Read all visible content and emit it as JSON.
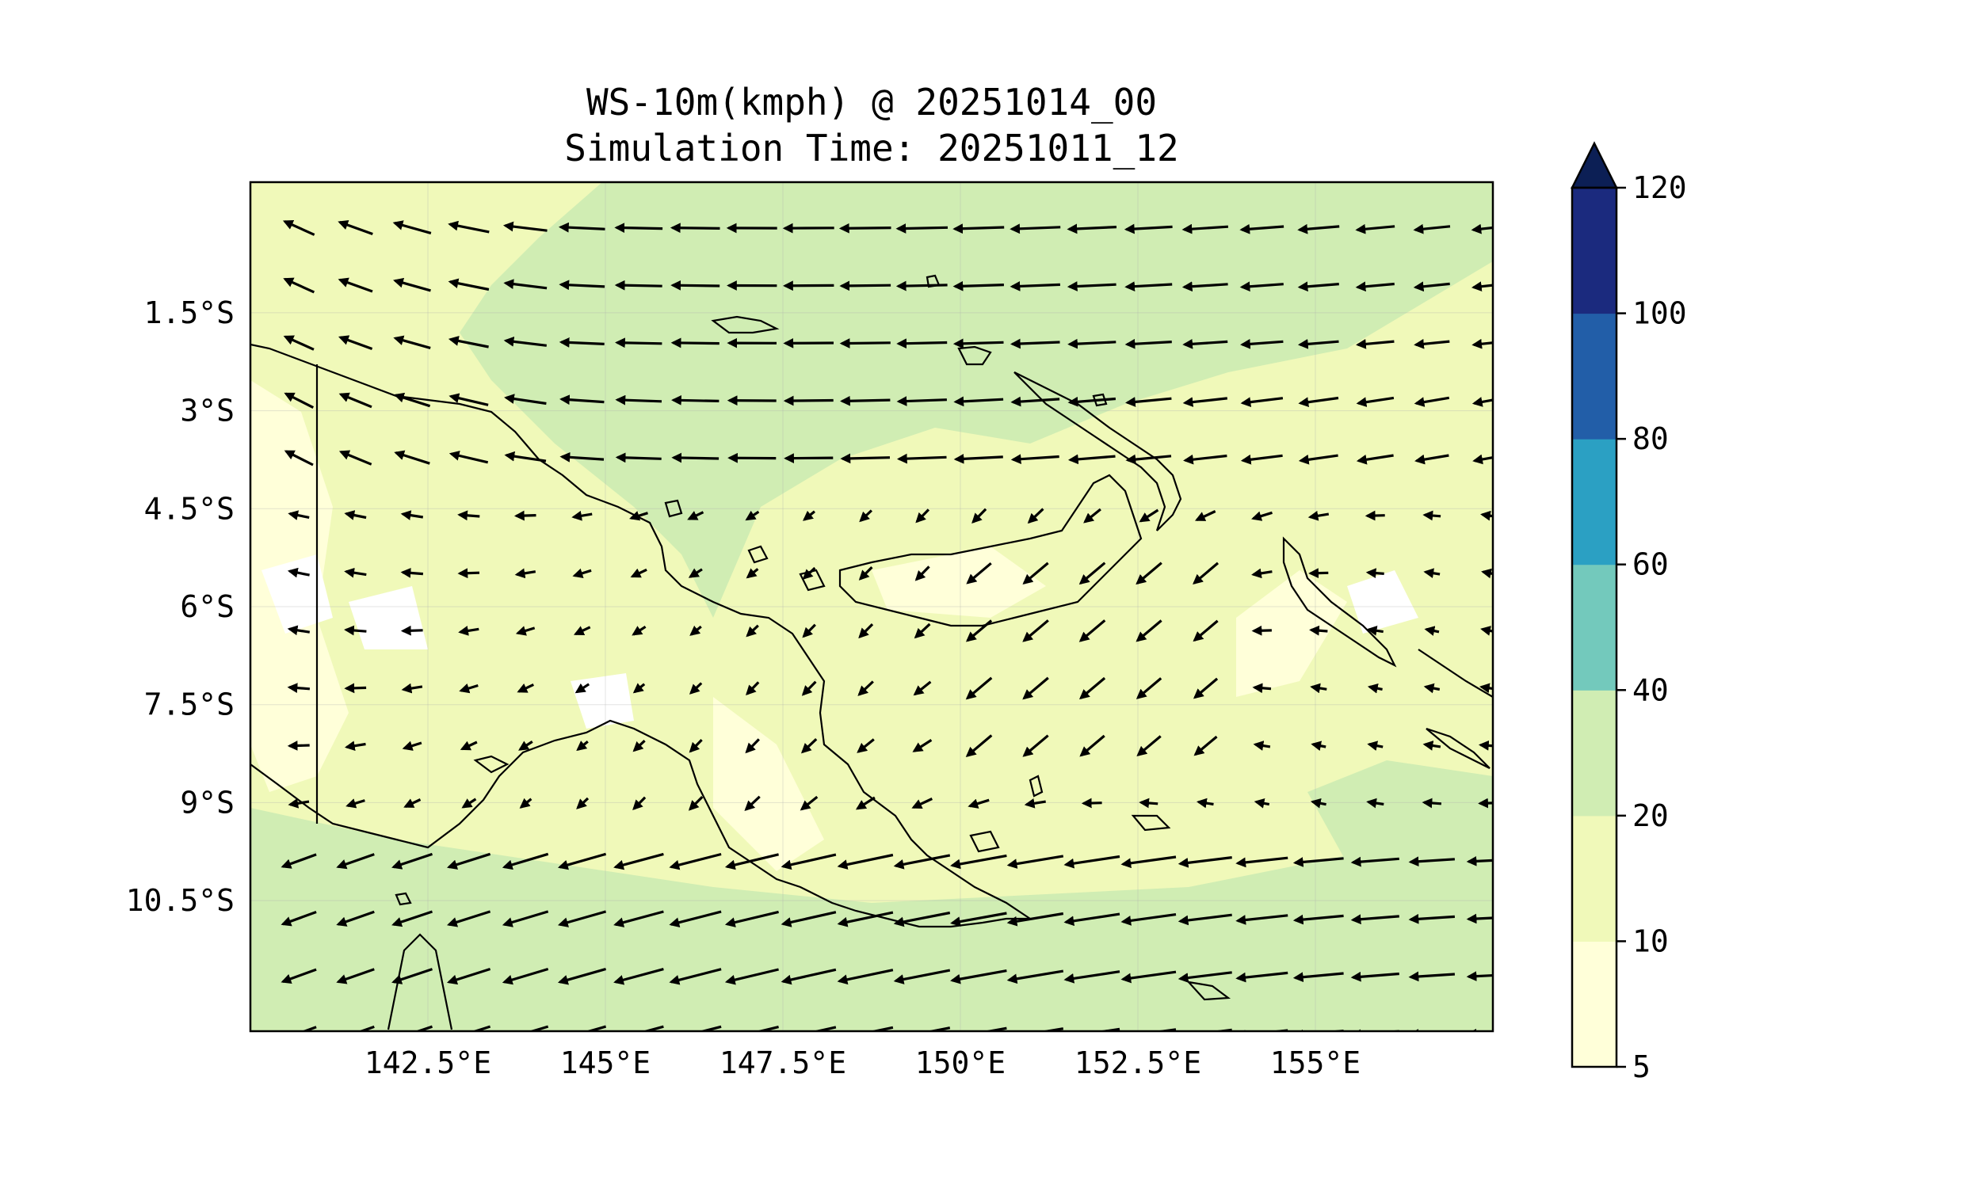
{
  "map": {
    "title_line1": "WS-10m(kmph) @ 20251014_00",
    "title_line2": "Simulation Time: 20251011_12",
    "lon_range": [
      140.0,
      157.5
    ],
    "lat_range": [
      -12.5,
      0.5
    ],
    "lon_ticks": [
      {
        "value": 142.5,
        "label": "142.5°E"
      },
      {
        "value": 145.0,
        "label": "145°E"
      },
      {
        "value": 147.5,
        "label": "147.5°E"
      },
      {
        "value": 150.0,
        "label": "150°E"
      },
      {
        "value": 152.5,
        "label": "152.5°E"
      },
      {
        "value": 155.0,
        "label": "155°E"
      }
    ],
    "lat_ticks": [
      {
        "value": -1.5,
        "label": "1.5°S"
      },
      {
        "value": -3.0,
        "label": "3°S"
      },
      {
        "value": -4.5,
        "label": "4.5°S"
      },
      {
        "value": -6.0,
        "label": "6°S"
      },
      {
        "value": -7.5,
        "label": "7.5°S"
      },
      {
        "value": -9.0,
        "label": "9°S"
      },
      {
        "value": -10.5,
        "label": "10.5°S"
      }
    ],
    "gridlines": true,
    "coastline_color": "#000000",
    "vector_color": "#000000"
  },
  "colorbar": {
    "placement": "right",
    "extend": "max",
    "levels": [
      {
        "from": 5,
        "to": 10,
        "color": "#ffffd9"
      },
      {
        "from": 10,
        "to": 20,
        "color": "#f0f9b9"
      },
      {
        "from": 20,
        "to": 40,
        "color": "#d0edb3"
      },
      {
        "from": 40,
        "to": 60,
        "color": "#73c9bc"
      },
      {
        "from": 60,
        "to": 80,
        "color": "#2ba0c3"
      },
      {
        "from": 80,
        "to": 100,
        "color": "#225ea8"
      },
      {
        "from": 100,
        "to": 120,
        "color": "#1b2a7e"
      }
    ],
    "extend_color": "#0c1f55",
    "tick_labels": [
      "5",
      "10",
      "20",
      "40",
      "60",
      "80",
      "100",
      "120"
    ]
  }
}
